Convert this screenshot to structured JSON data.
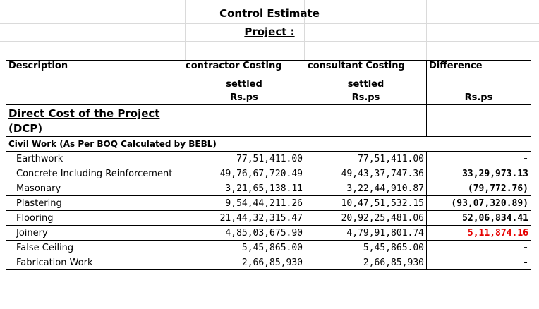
{
  "title_line1": "Control Estimate",
  "title_line2": "Project :",
  "columns": {
    "description": "Description",
    "contractor": "contractor Costing",
    "consultant": "consultant Costing",
    "difference": "Difference"
  },
  "settled": {
    "contractor": "settled",
    "consultant": "settled"
  },
  "units": {
    "contractor": "Rs.ps",
    "consultant": "Rs.ps",
    "difference": "Rs.ps"
  },
  "direct_cost": {
    "line1": "Direct Cost of the Project",
    "line2": "(DCP)"
  },
  "civil_work": "Civil Work (As Per BOQ Calculated by BEBL)",
  "items": [
    {
      "name": "Earthwork",
      "contractor": "77,51,411.00",
      "consultant": "77,51,411.00",
      "difference": "-",
      "diff_color": "#000000"
    },
    {
      "name": "Concrete Including Reinforcement",
      "contractor": "49,76,67,720.49",
      "consultant": "49,43,37,747.36",
      "difference": "33,29,973.13",
      "diff_color": "#000000"
    },
    {
      "name": "Masonary",
      "contractor": "3,21,65,138.11",
      "consultant": "3,22,44,910.87",
      "difference": "(79,772.76)",
      "diff_color": "#000000"
    },
    {
      "name": "Plastering",
      "contractor": "9,54,44,211.26",
      "consultant": "10,47,51,532.15",
      "difference": "(93,07,320.89)",
      "diff_color": "#000000"
    },
    {
      "name": "Flooring",
      "contractor": "21,44,32,315.47",
      "consultant": "20,92,25,481.06",
      "difference": "52,06,834.41",
      "diff_color": "#000000"
    },
    {
      "name": "Joinery",
      "contractor": "4,85,03,675.90",
      "consultant": "4,79,91,801.74",
      "difference": "5,11,874.16",
      "diff_color": "#e60000"
    },
    {
      "name": "False Ceiling",
      "contractor": "5,45,865.00",
      "consultant": "5,45,865.00",
      "difference": "-",
      "diff_color": "#000000"
    },
    {
      "name": "Fabrication Work",
      "contractor": "2,66,85,930",
      "consultant": "2,66,85,930",
      "difference": "-",
      "diff_color": "#000000"
    }
  ]
}
